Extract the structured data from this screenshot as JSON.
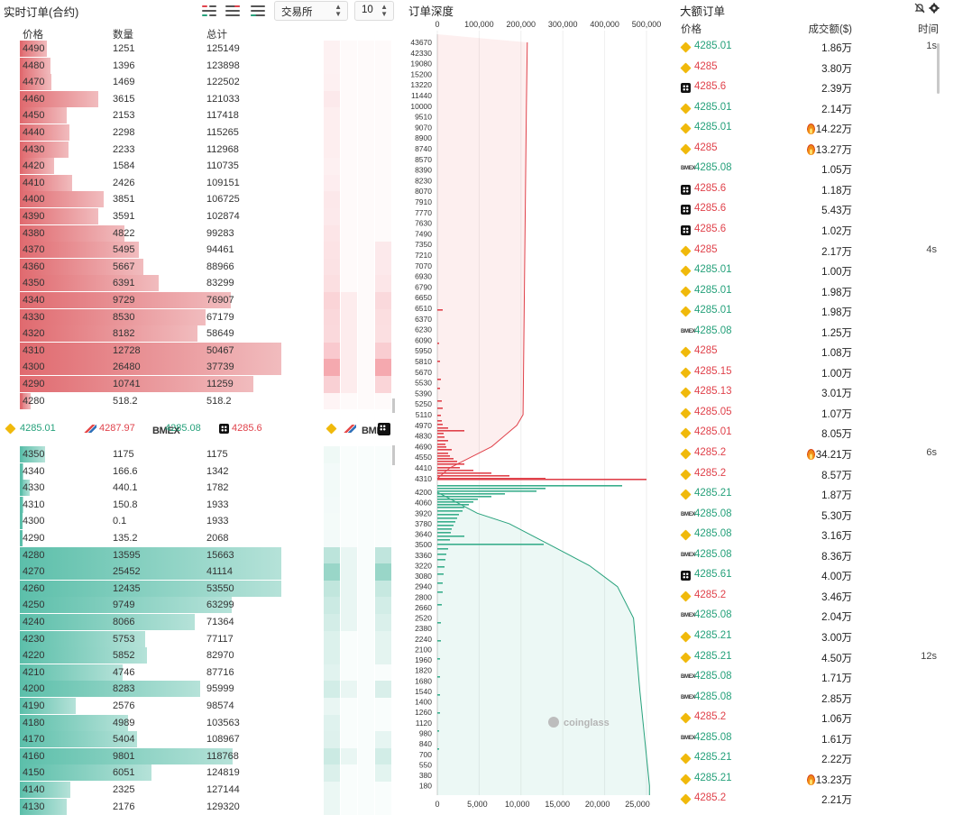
{
  "orderbook": {
    "title": "实时订单(合约)",
    "exchange_select": "交易所",
    "depth_select": "10",
    "headers": {
      "price": "价格",
      "qty": "数量",
      "total": "总计"
    },
    "asks": [
      {
        "price": "4490",
        "qty": "1251",
        "total": "125149"
      },
      {
        "price": "4480",
        "qty": "1396",
        "total": "123898"
      },
      {
        "price": "4470",
        "qty": "1469",
        "total": "122502"
      },
      {
        "price": "4460",
        "qty": "3615",
        "total": "121033"
      },
      {
        "price": "4450",
        "qty": "2153",
        "total": "117418"
      },
      {
        "price": "4440",
        "qty": "2298",
        "total": "115265"
      },
      {
        "price": "4430",
        "qty": "2233",
        "total": "112968"
      },
      {
        "price": "4420",
        "qty": "1584",
        "total": "110735"
      },
      {
        "price": "4410",
        "qty": "2426",
        "total": "109151"
      },
      {
        "price": "4400",
        "qty": "3851",
        "total": "106725"
      },
      {
        "price": "4390",
        "qty": "3591",
        "total": "102874"
      },
      {
        "price": "4380",
        "qty": "4822",
        "total": "99283"
      },
      {
        "price": "4370",
        "qty": "5495",
        "total": "94461"
      },
      {
        "price": "4360",
        "qty": "5667",
        "total": "88966"
      },
      {
        "price": "4350",
        "qty": "6391",
        "total": "83299"
      },
      {
        "price": "4340",
        "qty": "9729",
        "total": "76907"
      },
      {
        "price": "4330",
        "qty": "8530",
        "total": "67179"
      },
      {
        "price": "4320",
        "qty": "8182",
        "total": "58649"
      },
      {
        "price": "4310",
        "qty": "12728",
        "total": "50467"
      },
      {
        "price": "4300",
        "qty": "26480",
        "total": "37739"
      },
      {
        "price": "4290",
        "qty": "10741",
        "total": "11259"
      },
      {
        "price": "4280",
        "qty": "518.2",
        "total": "518.2"
      }
    ],
    "bids": [
      {
        "price": "4350",
        "qty": "1175",
        "total": "1175"
      },
      {
        "price": "4340",
        "qty": "166.6",
        "total": "1342"
      },
      {
        "price": "4330",
        "qty": "440.1",
        "total": "1782"
      },
      {
        "price": "4310",
        "qty": "150.8",
        "total": "1933"
      },
      {
        "price": "4300",
        "qty": "0.1",
        "total": "1933"
      },
      {
        "price": "4290",
        "qty": "135.2",
        "total": "2068"
      },
      {
        "price": "4280",
        "qty": "13595",
        "total": "15663"
      },
      {
        "price": "4270",
        "qty": "25452",
        "total": "41114"
      },
      {
        "price": "4260",
        "qty": "12435",
        "total": "53550"
      },
      {
        "price": "4250",
        "qty": "9749",
        "total": "63299"
      },
      {
        "price": "4240",
        "qty": "8066",
        "total": "71364"
      },
      {
        "price": "4230",
        "qty": "5753",
        "total": "77117"
      },
      {
        "price": "4220",
        "qty": "5852",
        "total": "82970"
      },
      {
        "price": "4210",
        "qty": "4746",
        "total": "87716"
      },
      {
        "price": "4200",
        "qty": "8283",
        "total": "95999"
      },
      {
        "price": "4190",
        "qty": "2576",
        "total": "98574"
      },
      {
        "price": "4180",
        "qty": "4989",
        "total": "103563"
      },
      {
        "price": "4170",
        "qty": "5404",
        "total": "108967"
      },
      {
        "price": "4160",
        "qty": "9801",
        "total": "118768"
      },
      {
        "price": "4150",
        "qty": "6051",
        "total": "124819"
      },
      {
        "price": "4140",
        "qty": "2325",
        "total": "127144"
      },
      {
        "price": "4130",
        "qty": "2176",
        "total": "129320"
      }
    ],
    "prices_bar": [
      {
        "exchange": "binance-icon",
        "price": "4285.01",
        "color": "#26a17b"
      },
      {
        "exchange": "huobi-icon",
        "price": "4287.97",
        "color": "#e0424b"
      },
      {
        "exchange": "bitmex-icon",
        "label": "BMEX",
        "price": "4285.08",
        "color": "#26a17b"
      },
      {
        "exchange": "okx-icon",
        "price": "4285.6",
        "color": "#e0424b"
      }
    ],
    "exchange_columns": [
      "binance-icon",
      "huobi-icon",
      "bitmex-icon",
      "okx-icon"
    ],
    "colors": {
      "ask": "#e06a6f",
      "bid": "#5cbfaa",
      "up": "#26a17b",
      "down": "#e0424b"
    }
  },
  "depth": {
    "title": "订单深度",
    "chart_data": {
      "type": "area",
      "title": "订单深度",
      "top_axis": {
        "ticks": [
          "0",
          "100,000",
          "200,000",
          "300,000",
          "400,000",
          "500,000"
        ],
        "range": [
          0,
          500000
        ]
      },
      "bottom_axis": {
        "ticks": [
          "0",
          "5,000",
          "10,000",
          "15,000",
          "20,000",
          "25,000"
        ],
        "range": [
          0,
          25000
        ]
      },
      "ask_price_ticks": [
        "43670",
        "42330",
        "19080",
        "15200",
        "13220",
        "11440",
        "10000",
        "9510",
        "9070",
        "8900",
        "8740",
        "8570",
        "8390",
        "8230",
        "8070",
        "7910",
        "7770",
        "7630",
        "7490",
        "7350",
        "7210",
        "7070",
        "6930",
        "6790",
        "6650",
        "6510",
        "6370",
        "6230",
        "6090",
        "5950",
        "5810",
        "5670",
        "5530",
        "5390",
        "5250",
        "5110",
        "4970",
        "4830",
        "4690",
        "4550",
        "4410",
        "4310"
      ],
      "bid_price_ticks": [
        "4200",
        "4060",
        "3920",
        "3780",
        "3640",
        "3500",
        "3360",
        "3220",
        "3080",
        "2940",
        "2800",
        "2660",
        "2520",
        "2380",
        "2240",
        "2100",
        "1960",
        "1820",
        "1680",
        "1540",
        "1400",
        "1260",
        "1120",
        "980",
        "840",
        "700",
        "550",
        "380",
        "180"
      ],
      "ask_cumulative": [
        {
          "price": 43670,
          "total": 215000
        },
        {
          "price": 10000,
          "total": 213000
        },
        {
          "price": 5110,
          "total": 205000
        },
        {
          "price": 4970,
          "total": 190000
        },
        {
          "price": 4830,
          "total": 160000
        },
        {
          "price": 4690,
          "total": 130000
        },
        {
          "price": 4550,
          "total": 80000
        },
        {
          "price": 4410,
          "total": 30000
        },
        {
          "price": 4310,
          "total": 0
        }
      ],
      "bid_cumulative": [
        {
          "price": 4200,
          "total": 0
        },
        {
          "price": 3920,
          "total": 5000
        },
        {
          "price": 3780,
          "total": 9000
        },
        {
          "price": 3500,
          "total": 14000
        },
        {
          "price": 3220,
          "total": 19000
        },
        {
          "price": 2940,
          "total": 22500
        },
        {
          "price": 2520,
          "total": 24500
        },
        {
          "price": 1540,
          "total": 25300
        },
        {
          "price": 180,
          "total": 26500
        }
      ],
      "watermark": "coinglass"
    }
  },
  "bigorders": {
    "title": "大额订单",
    "headers": {
      "price": "价格",
      "amount": "成交额($)",
      "time": "时间"
    },
    "rows": [
      {
        "ex": "binance",
        "price": "4285.01",
        "side": "buy",
        "amount": "1.86万",
        "fire": false,
        "time": "1s"
      },
      {
        "ex": "binance",
        "price": "4285",
        "side": "sell",
        "amount": "3.80万",
        "fire": false,
        "time": ""
      },
      {
        "ex": "okx",
        "price": "4285.6",
        "side": "sell",
        "amount": "2.39万",
        "fire": false,
        "time": ""
      },
      {
        "ex": "binance",
        "price": "4285.01",
        "side": "buy",
        "amount": "2.14万",
        "fire": false,
        "time": ""
      },
      {
        "ex": "binance",
        "price": "4285.01",
        "side": "buy",
        "amount": "14.22万",
        "fire": true,
        "time": ""
      },
      {
        "ex": "binance",
        "price": "4285",
        "side": "sell",
        "amount": "13.27万",
        "fire": true,
        "time": ""
      },
      {
        "ex": "bitmex",
        "price": "4285.08",
        "side": "buy",
        "amount": "1.05万",
        "fire": false,
        "time": ""
      },
      {
        "ex": "okx",
        "price": "4285.6",
        "side": "sell",
        "amount": "1.18万",
        "fire": false,
        "time": ""
      },
      {
        "ex": "okx",
        "price": "4285.6",
        "side": "sell",
        "amount": "5.43万",
        "fire": false,
        "time": ""
      },
      {
        "ex": "okx",
        "price": "4285.6",
        "side": "sell",
        "amount": "1.02万",
        "fire": false,
        "time": ""
      },
      {
        "ex": "binance",
        "price": "4285",
        "side": "sell",
        "amount": "2.17万",
        "fire": false,
        "time": "4s"
      },
      {
        "ex": "binance",
        "price": "4285.01",
        "side": "buy",
        "amount": "1.00万",
        "fire": false,
        "time": ""
      },
      {
        "ex": "binance",
        "price": "4285.01",
        "side": "buy",
        "amount": "1.98万",
        "fire": false,
        "time": ""
      },
      {
        "ex": "binance",
        "price": "4285.01",
        "side": "buy",
        "amount": "1.98万",
        "fire": false,
        "time": ""
      },
      {
        "ex": "bitmex",
        "price": "4285.08",
        "side": "buy",
        "amount": "1.25万",
        "fire": false,
        "time": ""
      },
      {
        "ex": "binance",
        "price": "4285",
        "side": "sell",
        "amount": "1.08万",
        "fire": false,
        "time": ""
      },
      {
        "ex": "binance",
        "price": "4285.15",
        "side": "sell",
        "amount": "1.00万",
        "fire": false,
        "time": ""
      },
      {
        "ex": "binance",
        "price": "4285.13",
        "side": "sell",
        "amount": "3.01万",
        "fire": false,
        "time": ""
      },
      {
        "ex": "binance",
        "price": "4285.05",
        "side": "sell",
        "amount": "1.07万",
        "fire": false,
        "time": ""
      },
      {
        "ex": "binance",
        "price": "4285.01",
        "side": "sell",
        "amount": "8.05万",
        "fire": false,
        "time": ""
      },
      {
        "ex": "binance",
        "price": "4285.2",
        "side": "sell",
        "amount": "34.21万",
        "fire": true,
        "time": "6s"
      },
      {
        "ex": "binance",
        "price": "4285.2",
        "side": "sell",
        "amount": "8.57万",
        "fire": false,
        "time": ""
      },
      {
        "ex": "binance",
        "price": "4285.21",
        "side": "buy",
        "amount": "1.87万",
        "fire": false,
        "time": ""
      },
      {
        "ex": "bitmex",
        "price": "4285.08",
        "side": "buy",
        "amount": "5.30万",
        "fire": false,
        "time": ""
      },
      {
        "ex": "binance",
        "price": "4285.08",
        "side": "buy",
        "amount": "3.16万",
        "fire": false,
        "time": ""
      },
      {
        "ex": "bitmex",
        "price": "4285.08",
        "side": "buy",
        "amount": "8.36万",
        "fire": false,
        "time": ""
      },
      {
        "ex": "okx",
        "price": "4285.61",
        "side": "buy",
        "amount": "4.00万",
        "fire": false,
        "time": ""
      },
      {
        "ex": "binance",
        "price": "4285.2",
        "side": "sell",
        "amount": "3.46万",
        "fire": false,
        "time": ""
      },
      {
        "ex": "bitmex",
        "price": "4285.08",
        "side": "buy",
        "amount": "2.04万",
        "fire": false,
        "time": ""
      },
      {
        "ex": "binance",
        "price": "4285.21",
        "side": "buy",
        "amount": "3.00万",
        "fire": false,
        "time": ""
      },
      {
        "ex": "binance",
        "price": "4285.21",
        "side": "buy",
        "amount": "4.50万",
        "fire": false,
        "time": "12s"
      },
      {
        "ex": "bitmex",
        "price": "4285.08",
        "side": "buy",
        "amount": "1.71万",
        "fire": false,
        "time": ""
      },
      {
        "ex": "bitmex",
        "price": "4285.08",
        "side": "buy",
        "amount": "2.85万",
        "fire": false,
        "time": ""
      },
      {
        "ex": "binance",
        "price": "4285.2",
        "side": "sell",
        "amount": "1.06万",
        "fire": false,
        "time": ""
      },
      {
        "ex": "bitmex",
        "price": "4285.08",
        "side": "buy",
        "amount": "1.61万",
        "fire": false,
        "time": ""
      },
      {
        "ex": "binance",
        "price": "4285.21",
        "side": "buy",
        "amount": "2.22万",
        "fire": false,
        "time": ""
      },
      {
        "ex": "binance",
        "price": "4285.21",
        "side": "buy",
        "amount": "13.23万",
        "fire": true,
        "time": ""
      },
      {
        "ex": "binance",
        "price": "4285.2",
        "side": "sell",
        "amount": "2.21万",
        "fire": false,
        "time": ""
      }
    ]
  }
}
